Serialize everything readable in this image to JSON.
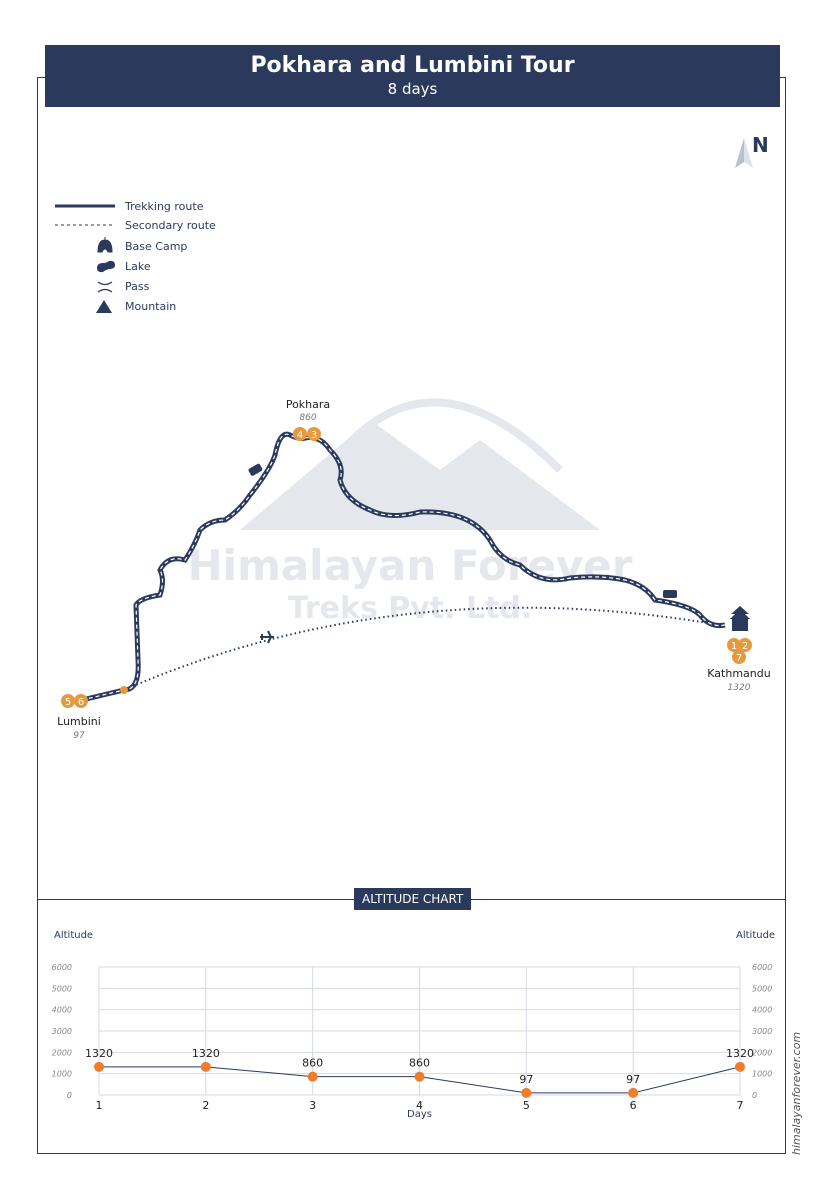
{
  "header": {
    "title": "Pokhara and Lumbini Tour",
    "subtitle": "8 days"
  },
  "north_label": "N",
  "legend": [
    {
      "label": "Trekking route",
      "icon": "solid-line"
    },
    {
      "label": "Secondary route",
      "icon": "dashed-line"
    },
    {
      "label": "Base Camp",
      "icon": "tent-icon"
    },
    {
      "label": "Lake",
      "icon": "lake-icon"
    },
    {
      "label": "Pass",
      "icon": "pass-icon"
    },
    {
      "label": "Mountain",
      "icon": "mountain-icon"
    }
  ],
  "watermark": {
    "line1": "Himalayan Forever",
    "line2": "Treks Pvt. Ltd."
  },
  "places": [
    {
      "name": "Pokhara",
      "altitude": "860",
      "days": [
        "4",
        "3"
      ]
    },
    {
      "name": "Kathmandu",
      "altitude": "1320",
      "days": [
        "1",
        "2",
        "7"
      ]
    },
    {
      "name": "Lumbini",
      "altitude": "97",
      "days": [
        "5",
        "6"
      ]
    }
  ],
  "colors": {
    "primary": "#2b3a5c",
    "accent": "#e8983e",
    "chart_point": "#ee7d30"
  },
  "chart_title": "ALTITUDE CHART",
  "chart_data": {
    "type": "line",
    "x": [
      1,
      2,
      3,
      4,
      5,
      6,
      7
    ],
    "values": [
      1320,
      1320,
      860,
      860,
      97,
      97,
      1320
    ],
    "xlabel": "Days",
    "ylabel": "Altitude",
    "ylabel_right": "Altitude",
    "ylim": [
      0,
      6000
    ],
    "yticks": [
      0,
      1000,
      2000,
      3000,
      4000,
      5000,
      6000
    ],
    "grid": true
  },
  "website": "himalayanforever.com"
}
